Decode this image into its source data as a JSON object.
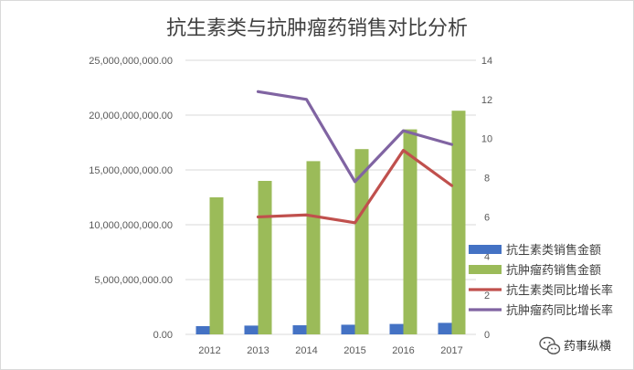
{
  "chart_data": {
    "type": "bar",
    "title": "抗生素类与抗肿瘤药销售对比分析",
    "categories": [
      "2012",
      "2013",
      "2014",
      "2015",
      "2016",
      "2017"
    ],
    "y_left": {
      "ylim": [
        0,
        25000000000
      ],
      "ticks": [
        "0.00",
        "5,000,000,000.00",
        "10,000,000,000.00",
        "15,000,000,000.00",
        "20,000,000,000.00",
        "25,000,000,000.00"
      ],
      "tick_values": [
        0,
        5000000000,
        10000000000,
        15000000000,
        20000000000,
        25000000000
      ]
    },
    "y_right": {
      "ylim": [
        0,
        14
      ],
      "ticks": [
        "0",
        "2",
        "4",
        "6",
        "8",
        "10",
        "12",
        "14"
      ],
      "tick_values": [
        0,
        2,
        4,
        6,
        8,
        10,
        12,
        14
      ]
    },
    "series": [
      {
        "name": "抗生素类销售金额",
        "kind": "bar",
        "axis": "left",
        "color": "#4472c4",
        "values": [
          750000000,
          800000000,
          830000000,
          880000000,
          950000000,
          1050000000
        ]
      },
      {
        "name": "抗肿瘤药销售金额",
        "kind": "bar",
        "axis": "left",
        "color": "#9bbb59",
        "values": [
          12500000000,
          14000000000,
          15800000000,
          16900000000,
          18700000000,
          20400000000
        ]
      },
      {
        "name": "抗生素类同比增长率",
        "kind": "line",
        "axis": "right",
        "color": "#c0504d",
        "values": [
          null,
          6.0,
          6.1,
          5.7,
          9.4,
          7.6
        ]
      },
      {
        "name": "抗肿瘤药同比增长率",
        "kind": "line",
        "axis": "right",
        "color": "#8064a2",
        "values": [
          null,
          12.4,
          12.0,
          7.8,
          10.4,
          9.7
        ]
      }
    ],
    "grid": true,
    "legend_position": "right"
  },
  "watermark": {
    "text": "药事纵横",
    "icon": "wechat-icon"
  }
}
